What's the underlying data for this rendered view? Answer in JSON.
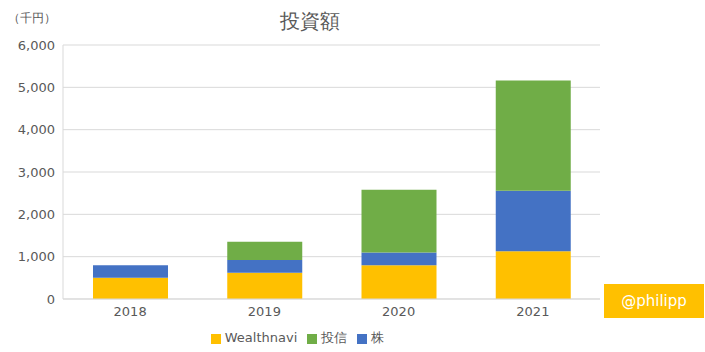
{
  "chart_data": {
    "type": "bar",
    "title": "投資額",
    "y_label": "（千円）",
    "annotation": "@philipp",
    "stacked": true,
    "grid": true,
    "legend": "bottom",
    "categories": [
      "2018",
      "2019",
      "2020",
      "2021"
    ],
    "series": [
      {
        "name": "Wealthnavi",
        "color": "#ffc000",
        "values": [
          500,
          620,
          800,
          1130
        ]
      },
      {
        "name": "株",
        "color": "#4472c4",
        "values": [
          300,
          300,
          300,
          1430
        ]
      },
      {
        "name": "投信",
        "color": "#70ad47",
        "values": [
          0,
          430,
          1480,
          2600
        ]
      }
    ],
    "ylim": [
      0,
      6000
    ],
    "yticks": [
      0,
      {
        "value": 1000,
        "label": "1,000"
      },
      {
        "value": 2000,
        "label": "2,000"
      },
      {
        "value": 3000,
        "label": "3,000"
      },
      {
        "value": 4000,
        "label": "4,000"
      },
      {
        "value": 5000,
        "label": "5,000"
      },
      {
        "value": 6000,
        "label": "6,000"
      }
    ]
  }
}
